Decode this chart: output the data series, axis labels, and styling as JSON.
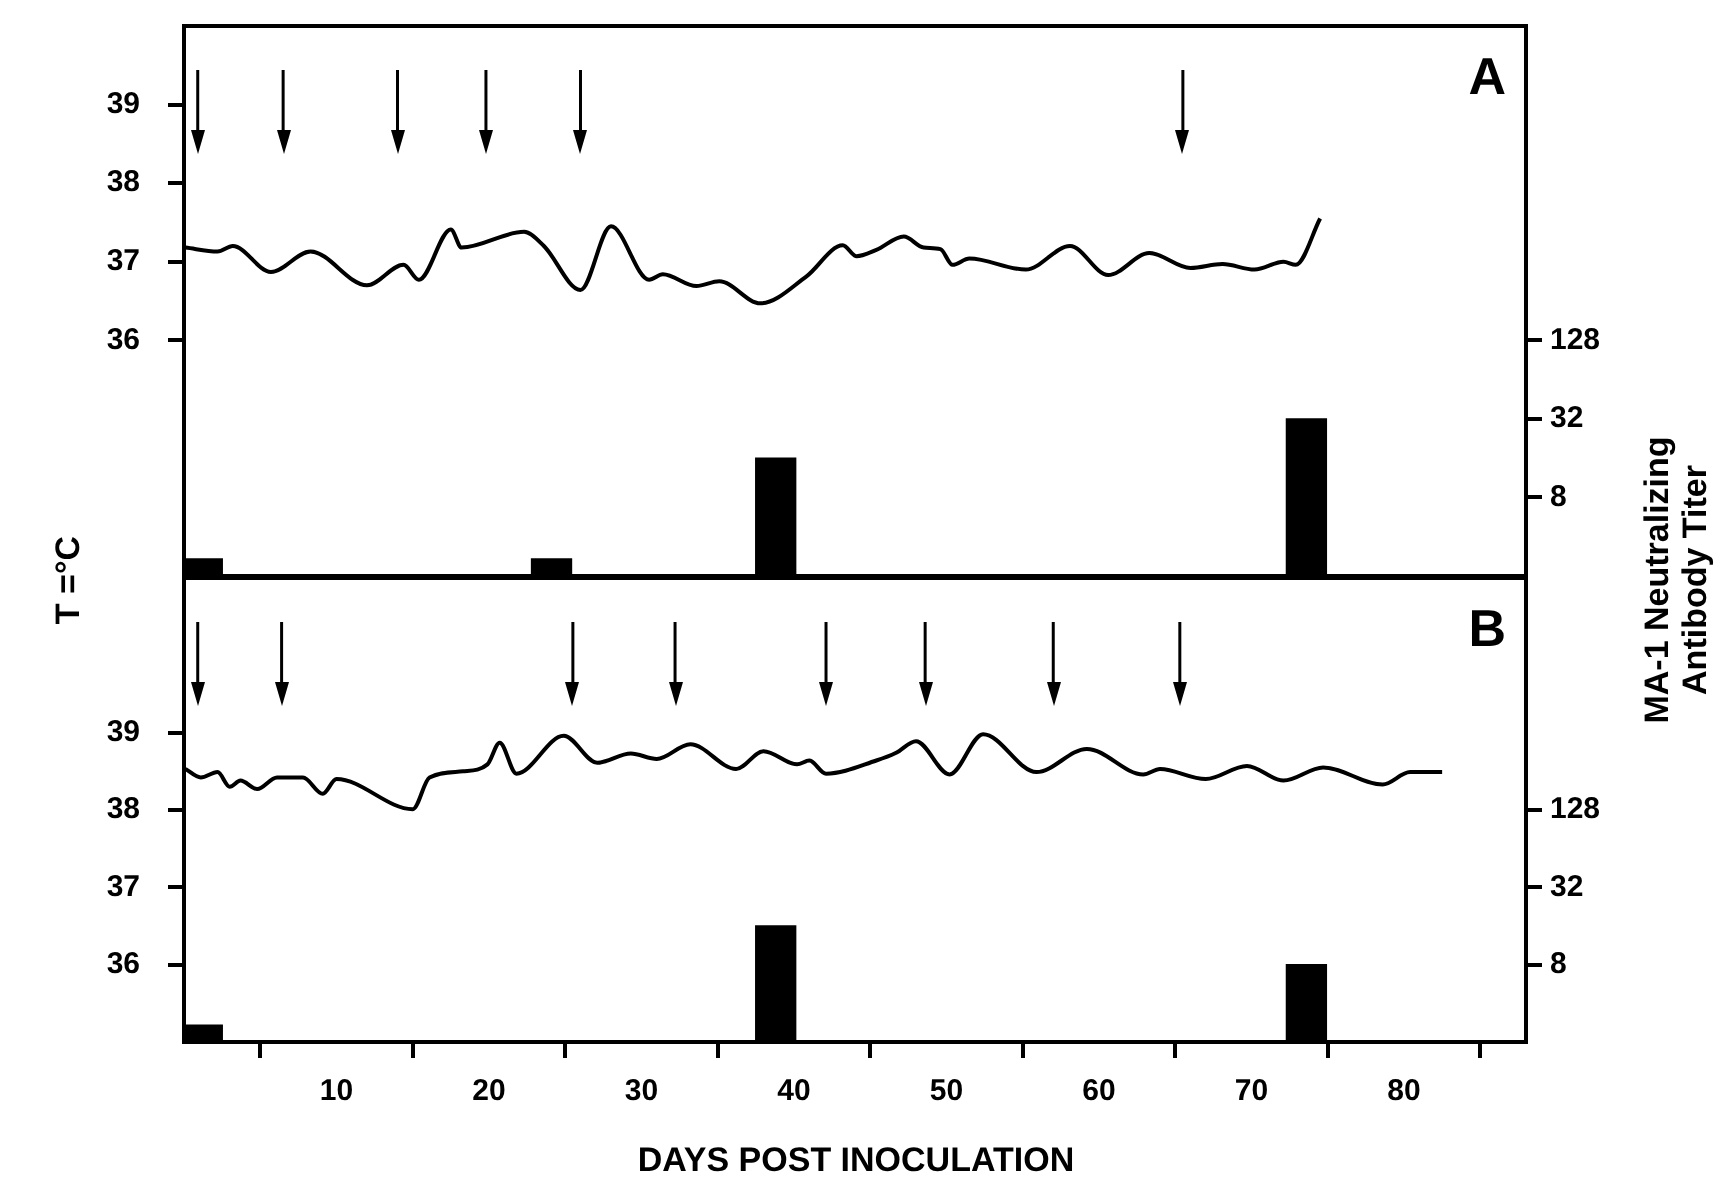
{
  "chart_data": [
    {
      "type": "line",
      "ylabel": "T =°C",
      "y2label": "MA-1 Neutralizing\nAntibody Titer",
      "xlim": [
        0,
        88
      ],
      "ylim": [
        33,
        40
      ],
      "yticks": [
        36,
        37,
        38,
        39
      ],
      "y2lim": [
        2,
        32768
      ],
      "y2ticks": [
        8,
        32,
        128
      ],
      "log": "y2",
      "tick_labels": "y",
      "grid": false,
      "legend": false,
      "marker": "none",
      "series": [
        {
          "color": "#000000",
          "x": [
            0.1,
            2.2,
            3.2,
            5.7,
            8.3,
            12.0,
            14.4,
            15.4,
            17.5,
            18.2,
            22.3,
            23.6,
            26.0,
            28.0,
            30.5,
            31.4,
            33.6,
            35.1,
            37.8,
            40.8,
            43.2,
            44.1,
            45.4,
            47.2,
            48.5,
            49.6,
            50.4,
            51.5,
            55.2,
            58.1,
            60.6,
            63.3,
            66.0,
            68.1,
            70.2,
            72.1,
            72.9,
            74.5
          ],
          "values": [
            37.18,
            37.13,
            37.2,
            36.87,
            37.13,
            36.7,
            36.96,
            36.77,
            37.41,
            37.18,
            37.38,
            37.2,
            36.64,
            37.45,
            36.77,
            36.84,
            36.69,
            36.75,
            36.47,
            36.81,
            37.21,
            37.07,
            37.15,
            37.32,
            37.18,
            37.16,
            36.96,
            37.04,
            36.9,
            37.2,
            36.83,
            37.11,
            36.92,
            36.97,
            36.9,
            37.0,
            36.96,
            37.55
          ]
        },
        {
          "type": "bar",
          "axis": "y2",
          "color": "#000000",
          "x": [
            1.2,
            24.1,
            38.8,
            73.6
          ],
          "values": [
            2.7,
            2.7,
            16,
            32
          ]
        }
      ],
      "annotations": [
        "A"
      ],
      "ref_lines": [
        {
          "axis": "x",
          "value": 0.9
        },
        {
          "axis": "x",
          "value": 6.5
        },
        {
          "axis": "x",
          "value": 14.0
        },
        {
          "axis": "x",
          "value": 19.8
        },
        {
          "axis": "x",
          "value": 26.0
        },
        {
          "axis": "x",
          "value": 65.5
        }
      ]
    },
    {
      "type": "line",
      "xlabel": "DAYS POST INOCULATION",
      "xlim": [
        0,
        88
      ],
      "xticks": [
        10,
        20,
        30,
        40,
        50,
        60,
        70,
        80
      ],
      "ylim": [
        35,
        41
      ],
      "yticks": [
        36,
        37,
        38,
        39
      ],
      "y2lim": [
        2,
        8192
      ],
      "y2ticks": [
        8,
        32,
        128
      ],
      "log": "y2",
      "grid": false,
      "legend": false,
      "marker": "none",
      "series": [
        {
          "color": "#000000",
          "x": [
            0.1,
            1.1,
            2.2,
            3.0,
            3.7,
            4.8,
            6.1,
            7.8,
            9.1,
            10.0,
            15.0,
            16.1,
            18.3,
            19.9,
            20.7,
            21.8,
            24.9,
            27.1,
            29.3,
            31.0,
            33.2,
            36.2,
            38.0,
            40.2,
            41.0,
            42.1,
            45.4,
            46.7,
            48.0,
            50.2,
            52.4,
            55.9,
            59.2,
            62.9,
            64.0,
            67.0,
            69.7,
            72.1,
            74.7,
            78.6,
            80.4,
            82.5
          ],
          "values": [
            38.53,
            38.42,
            38.49,
            38.3,
            38.38,
            38.27,
            38.42,
            38.42,
            38.21,
            38.4,
            38.01,
            38.42,
            38.5,
            38.59,
            38.87,
            38.47,
            38.96,
            38.61,
            38.73,
            38.66,
            38.85,
            38.53,
            38.76,
            38.59,
            38.64,
            38.47,
            38.64,
            38.74,
            38.89,
            38.46,
            38.98,
            38.49,
            38.79,
            38.46,
            38.53,
            38.4,
            38.57,
            38.38,
            38.55,
            38.33,
            38.49,
            38.49
          ]
        },
        {
          "type": "bar",
          "axis": "y2",
          "color": "#000000",
          "x": [
            1.2,
            38.8,
            73.6
          ],
          "values": [
            2.7,
            16,
            8
          ]
        }
      ],
      "annotations": [
        "B"
      ],
      "ref_lines": [
        {
          "axis": "x",
          "value": 0.9
        },
        {
          "axis": "x",
          "value": 6.4
        },
        {
          "axis": "x",
          "value": 25.5
        },
        {
          "axis": "x",
          "value": 32.2
        },
        {
          "axis": "x",
          "value": 42.1
        },
        {
          "axis": "x",
          "value": 48.6
        },
        {
          "axis": "x",
          "value": 57.0
        },
        {
          "axis": "x",
          "value": 65.3
        }
      ]
    }
  ]
}
